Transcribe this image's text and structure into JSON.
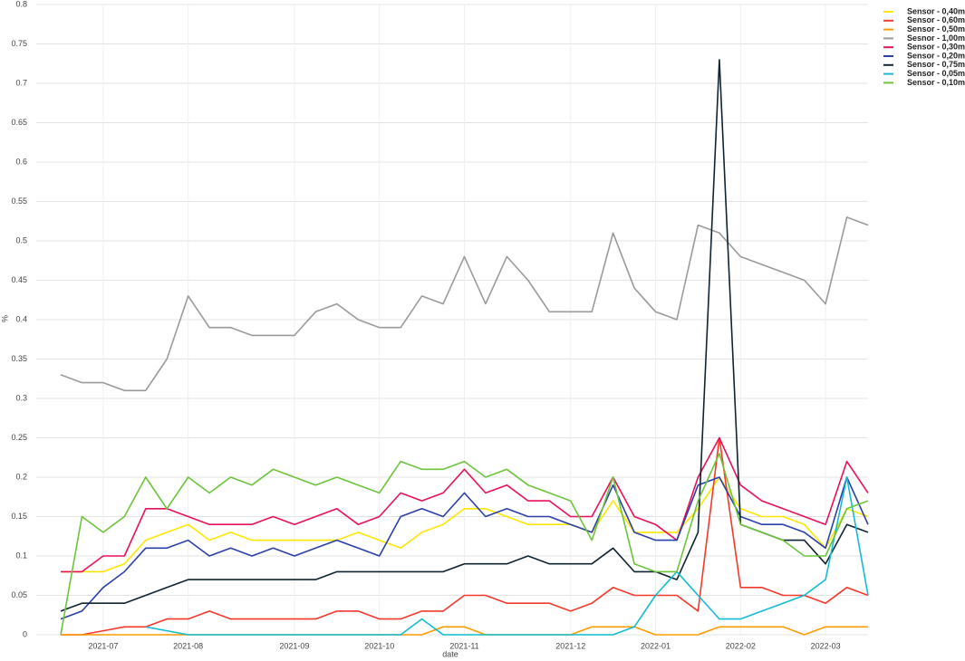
{
  "chart_data": {
    "type": "line",
    "x_label": "date",
    "y_label": "%",
    "categories": [
      null,
      null,
      "2021-07",
      null,
      null,
      null,
      "2021-08",
      null,
      null,
      null,
      null,
      "2021-09",
      null,
      null,
      null,
      "2021-10",
      null,
      null,
      null,
      "2021-11",
      null,
      null,
      null,
      null,
      "2021-12",
      null,
      null,
      null,
      "2022-01",
      null,
      null,
      null,
      "2022-02",
      null,
      null,
      null,
      "2022-03",
      null,
      null
    ],
    "series": [
      {
        "name": "Sensor - 0,40m",
        "color": "#ffe600",
        "values": [
          0.08,
          0.08,
          0.08,
          0.09,
          0.12,
          0.13,
          0.14,
          0.12,
          0.13,
          0.12,
          0.12,
          0.12,
          0.12,
          0.12,
          0.13,
          0.12,
          0.11,
          0.13,
          0.14,
          0.16,
          0.16,
          0.15,
          0.14,
          0.14,
          0.14,
          0.13,
          0.17,
          0.13,
          0.13,
          0.13,
          0.16,
          0.2,
          0.16,
          0.15,
          0.15,
          0.14,
          0.11,
          0.16,
          0.15
        ]
      },
      {
        "name": "Sensor - 0,60m",
        "color": "#f5382a",
        "values": [
          0,
          0,
          0.005,
          0.01,
          0.01,
          0.02,
          0.02,
          0.03,
          0.02,
          0.02,
          0.02,
          0.02,
          0.02,
          0.03,
          0.03,
          0.02,
          0.02,
          0.03,
          0.03,
          0.05,
          0.05,
          0.04,
          0.04,
          0.04,
          0.03,
          0.04,
          0.06,
          0.05,
          0.05,
          0.05,
          0.03,
          0.25,
          0.06,
          0.06,
          0.05,
          0.05,
          0.04,
          0.06,
          0.05
        ]
      },
      {
        "name": "Sensor - 0,50m",
        "color": "#ff9a00",
        "values": [
          0,
          0,
          0,
          0,
          0,
          0,
          0,
          0,
          0,
          0,
          0,
          0,
          0,
          0,
          0,
          0,
          0,
          0,
          0.01,
          0.01,
          0,
          0,
          0,
          0,
          0,
          0.01,
          0.01,
          0.01,
          0,
          0,
          0,
          0.01,
          0.01,
          0.01,
          0.01,
          0,
          0.01,
          0.01,
          0.01
        ]
      },
      {
        "name": "Sesnor - 1,00m",
        "color": "#9a9a9a",
        "values": [
          0.33,
          0.32,
          0.32,
          0.31,
          0.31,
          0.35,
          0.43,
          0.39,
          0.39,
          0.38,
          0.38,
          0.38,
          0.41,
          0.42,
          0.4,
          0.39,
          0.39,
          0.43,
          0.42,
          0.48,
          0.42,
          0.48,
          0.45,
          0.41,
          0.41,
          0.41,
          0.51,
          0.44,
          0.41,
          0.4,
          0.52,
          0.51,
          0.48,
          0.47,
          0.46,
          0.45,
          0.42,
          0.53,
          0.52
        ]
      },
      {
        "name": "Sensor - 0,30m",
        "color": "#e8105a",
        "values": [
          0.08,
          0.08,
          0.1,
          0.1,
          0.16,
          0.16,
          0.15,
          0.14,
          0.14,
          0.14,
          0.15,
          0.14,
          0.15,
          0.16,
          0.14,
          0.15,
          0.18,
          0.17,
          0.18,
          0.21,
          0.18,
          0.19,
          0.17,
          0.17,
          0.15,
          0.15,
          0.2,
          0.15,
          0.14,
          0.12,
          0.2,
          0.25,
          0.19,
          0.17,
          0.16,
          0.15,
          0.14,
          0.22,
          0.18
        ]
      },
      {
        "name": "Sensor - 0,20m",
        "color": "#2a40a8",
        "values": [
          0.02,
          0.03,
          0.06,
          0.08,
          0.11,
          0.11,
          0.12,
          0.1,
          0.11,
          0.1,
          0.11,
          0.1,
          0.11,
          0.12,
          0.11,
          0.1,
          0.15,
          0.16,
          0.15,
          0.18,
          0.15,
          0.16,
          0.15,
          0.15,
          0.14,
          0.13,
          0.19,
          0.13,
          0.12,
          0.12,
          0.19,
          0.2,
          0.15,
          0.14,
          0.14,
          0.13,
          0.11,
          0.2,
          0.14
        ]
      },
      {
        "name": "Sensor - 0,75m",
        "color": "#0e2433",
        "values": [
          0.03,
          0.04,
          0.04,
          0.04,
          0.05,
          0.06,
          0.07,
          0.07,
          0.07,
          0.07,
          0.07,
          0.07,
          0.07,
          0.08,
          0.08,
          0.08,
          0.08,
          0.08,
          0.08,
          0.09,
          0.09,
          0.09,
          0.1,
          0.09,
          0.09,
          0.09,
          0.11,
          0.08,
          0.08,
          0.07,
          0.13,
          0.73,
          0.14,
          0.13,
          0.12,
          0.12,
          0.09,
          0.14,
          0.13
        ]
      },
      {
        "name": "Sensor - 0,05m",
        "color": "#12bcd4",
        "values": [
          null,
          null,
          null,
          null,
          0.01,
          0.005,
          0,
          0,
          0,
          0,
          0,
          0,
          0,
          0,
          0,
          0,
          0,
          0.02,
          0,
          0,
          0,
          0,
          0,
          0,
          0,
          0,
          0,
          0.01,
          0.05,
          0.08,
          0.05,
          0.02,
          0.02,
          0.03,
          0.04,
          0.05,
          0.07,
          0.2,
          0.05
        ]
      },
      {
        "name": "Sensor - 0,10m",
        "color": "#6cc43a",
        "values": [
          0,
          0.15,
          0.13,
          0.15,
          0.2,
          0.16,
          0.2,
          0.18,
          0.2,
          0.19,
          0.21,
          0.2,
          0.19,
          0.2,
          0.19,
          0.18,
          0.22,
          0.21,
          0.21,
          0.22,
          0.2,
          0.21,
          0.19,
          0.18,
          0.17,
          0.12,
          0.2,
          0.09,
          0.08,
          0.08,
          0.17,
          0.23,
          0.14,
          0.13,
          0.12,
          0.1,
          0.1,
          0.16,
          0.17
        ]
      }
    ],
    "ylim": [
      0,
      0.8
    ],
    "yticks": [
      0,
      0.05,
      0.1,
      0.15,
      0.2,
      0.25,
      0.3,
      0.35,
      0.4,
      0.45,
      0.5,
      0.55,
      0.6,
      0.65,
      0.7,
      0.75,
      0.8
    ],
    "grid": true,
    "legend": "top-right"
  }
}
